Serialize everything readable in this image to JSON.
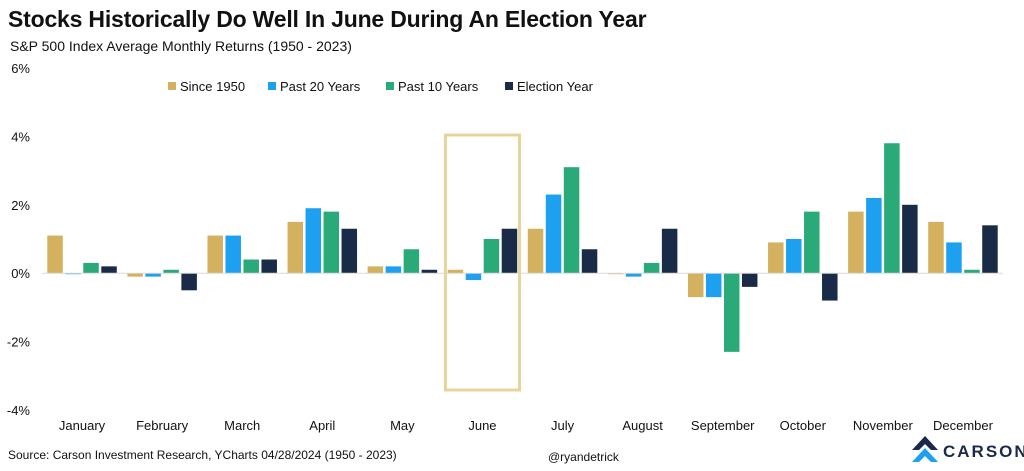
{
  "title": "Stocks Historically Do Well In June During An Election Year",
  "subtitle": "S&P 500 Index Average Monthly Returns (1950 - 2023)",
  "source": "Source: Carson Investment Research, YCharts 04/28/2024 (1950 - 2023)",
  "handle": "@ryandetrick",
  "logo": {
    "text": "CARSON",
    "icon": "carson-arrow-logo-icon"
  },
  "colors": {
    "since_1950": "#d4b15f",
    "past_20": "#1ea0f0",
    "past_10": "#2aaa78",
    "election": "#1a2b47",
    "highlight_box": "#e8d49a"
  },
  "chart_data": {
    "type": "bar",
    "title": "Stocks Historically Do Well In June During An Election Year",
    "subtitle": "S&P 500 Index Average Monthly Returns (1950 - 2023)",
    "xlabel": "",
    "ylabel": "",
    "ylim": [
      -4,
      6
    ],
    "yticks": [
      "6%",
      "4%",
      "2%",
      "0%",
      "-2%",
      "-4%"
    ],
    "ytick_values": [
      6,
      4,
      2,
      0,
      -2,
      -4
    ],
    "grid": false,
    "legend_position": "top-center",
    "categories": [
      "January",
      "February",
      "March",
      "April",
      "May",
      "June",
      "July",
      "August",
      "September",
      "October",
      "November",
      "December"
    ],
    "series": [
      {
        "name": "Since 1950",
        "color": "#d4b15f",
        "values": [
          1.1,
          -0.1,
          1.1,
          1.5,
          0.2,
          0.1,
          1.3,
          0.0,
          -0.7,
          0.9,
          1.8,
          1.5
        ]
      },
      {
        "name": "Past 20 Years",
        "color": "#1ea0f0",
        "values": [
          0.0,
          -0.1,
          1.1,
          1.9,
          0.2,
          -0.2,
          2.3,
          -0.1,
          -0.7,
          1.0,
          2.2,
          0.9
        ]
      },
      {
        "name": "Past 10 Years",
        "color": "#2aaa78",
        "values": [
          0.3,
          0.1,
          0.4,
          1.8,
          0.7,
          1.0,
          3.1,
          0.3,
          -2.3,
          1.8,
          3.8,
          0.1
        ]
      },
      {
        "name": "Election Year",
        "color": "#1a2b47",
        "values": [
          0.2,
          -0.5,
          0.4,
          1.3,
          0.1,
          1.3,
          0.7,
          1.3,
          -0.4,
          -0.8,
          2.0,
          1.4
        ]
      }
    ],
    "highlighted_category": "June"
  }
}
